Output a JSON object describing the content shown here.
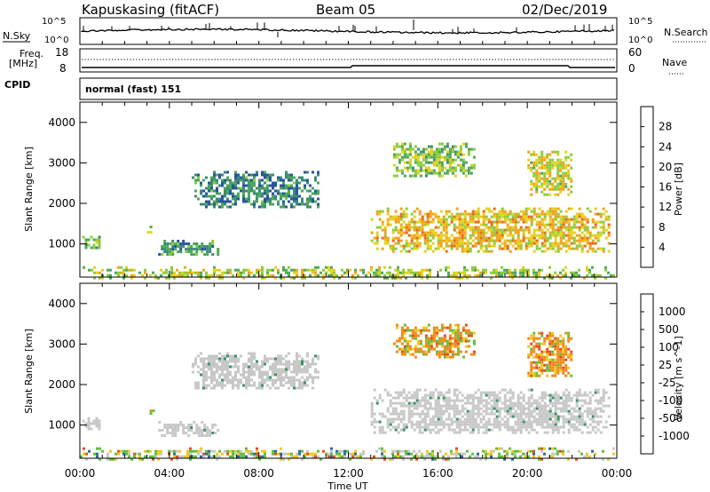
{
  "header": {
    "station": "Kapuskasing (fitACF)",
    "beam": "Beam 05",
    "date": "02/Dec/2019"
  },
  "noise_panel": {
    "left_label": "N.Sky",
    "right_label": "N.Search",
    "scale_top": "10^5",
    "scale_bottom": "10^0"
  },
  "freq_panel": {
    "left_label_1": "Freq.",
    "left_label_2": "[MHz]",
    "left_top": "18",
    "left_bottom": "8",
    "right_label": "Nave",
    "right_top": "60",
    "right_bottom": "0"
  },
  "cpid_panel": {
    "label": "CPID",
    "value": "normal (fast) 151"
  },
  "colors": {
    "power_scale": [
      "#1a3cc8",
      "#28569e",
      "#3f8a78",
      "#4ea85a",
      "#8ccc3c",
      "#e6d11e",
      "#f3a21a",
      "#ea6a1c",
      "#d42a1a"
    ],
    "velocity_scale": [
      "#2836c8",
      "#2e6a9c",
      "#3c9468",
      "#5ec040",
      "#c8c8c8",
      "#f0c81c",
      "#f08a1c",
      "#e6501c",
      "#d01e1e"
    ],
    "ground_scatter": "#c8c8c8",
    "noise_line": "#000000"
  },
  "chart_data": [
    {
      "type": "heatmap",
      "title": "",
      "xlabel": "Time UT",
      "ylabel": "Slant Range [km]",
      "x_ticks": [
        "00:00",
        "04:00",
        "08:00",
        "12:00",
        "16:00",
        "20:00",
        "00:00"
      ],
      "xlim_hours": [
        0,
        24
      ],
      "ylim_km": [
        180,
        4500
      ],
      "y_ticks": [
        "1000",
        "2000",
        "3000",
        "4000"
      ],
      "colorbar": {
        "label": "Power [dB]",
        "ticks": [
          "4",
          "8",
          "12",
          "16",
          "20",
          "24",
          "28"
        ],
        "range": [
          0,
          30
        ]
      },
      "regions": [
        {
          "start_hr": 0.1,
          "end_hr": 0.9,
          "lo_km": 900,
          "hi_km": 1200,
          "level": 12
        },
        {
          "start_hr": 3.0,
          "end_hr": 3.3,
          "lo_km": 1250,
          "hi_km": 1450,
          "level": 16
        },
        {
          "start_hr": 3.5,
          "end_hr": 6.2,
          "lo_km": 750,
          "hi_km": 1100,
          "level": 10
        },
        {
          "start_hr": 5.0,
          "end_hr": 10.6,
          "lo_km": 1900,
          "hi_km": 2800,
          "level": 8
        },
        {
          "start_hr": 13.0,
          "end_hr": 23.7,
          "lo_km": 800,
          "hi_km": 1900,
          "level": 20
        },
        {
          "start_hr": 14.0,
          "end_hr": 17.6,
          "lo_km": 2700,
          "hi_km": 3500,
          "level": 14
        },
        {
          "start_hr": 20.0,
          "end_hr": 22.0,
          "lo_km": 2200,
          "hi_km": 3300,
          "level": 18
        },
        {
          "start_hr": 0.0,
          "end_hr": 24.0,
          "lo_km": 180,
          "hi_km": 450,
          "level": 16
        }
      ]
    },
    {
      "type": "heatmap",
      "title": "",
      "xlabel": "Time UT",
      "ylabel": "Slant Range [km]",
      "x_ticks": [
        "00:00",
        "04:00",
        "08:00",
        "12:00",
        "16:00",
        "20:00",
        "00:00"
      ],
      "xlim_hours": [
        0,
        24
      ],
      "ylim_km": [
        180,
        4500
      ],
      "y_ticks": [
        "1000",
        "2000",
        "3000",
        "4000"
      ],
      "colorbar": {
        "label": "Velocity [m s^-1]",
        "ticks": [
          "1000",
          "500",
          "100",
          "25",
          "-25",
          "-100",
          "-500",
          "-1000"
        ]
      },
      "regions": [
        {
          "start_hr": 0.1,
          "end_hr": 0.9,
          "lo_km": 900,
          "hi_km": 1200,
          "kind": "ground"
        },
        {
          "start_hr": 3.0,
          "end_hr": 3.3,
          "lo_km": 1250,
          "hi_km": 1450,
          "kind": "negative"
        },
        {
          "start_hr": 3.5,
          "end_hr": 6.2,
          "lo_km": 750,
          "hi_km": 1100,
          "kind": "ground"
        },
        {
          "start_hr": 5.0,
          "end_hr": 10.6,
          "lo_km": 1900,
          "hi_km": 2800,
          "kind": "ground"
        },
        {
          "start_hr": 13.0,
          "end_hr": 23.7,
          "lo_km": 800,
          "hi_km": 1900,
          "kind": "ground"
        },
        {
          "start_hr": 14.0,
          "end_hr": 17.6,
          "lo_km": 2700,
          "hi_km": 3500,
          "kind": "negative"
        },
        {
          "start_hr": 20.0,
          "end_hr": 22.0,
          "lo_km": 2200,
          "hi_km": 3300,
          "kind": "negative"
        },
        {
          "start_hr": 0.0,
          "end_hr": 24.0,
          "lo_km": 180,
          "hi_km": 450,
          "kind": "mixed"
        }
      ]
    }
  ]
}
